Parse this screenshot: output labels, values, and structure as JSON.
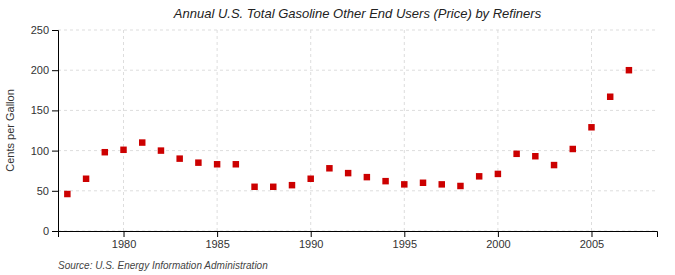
{
  "chart_data": {
    "type": "scatter",
    "title": "Annual U.S. Total Gasoline Other End Users (Price) by Refiners",
    "ylabel": "Cents per Gallon",
    "annotations": [
      "Source: U.S. Energy Information Administration"
    ],
    "x": [
      1977,
      1978,
      1979,
      1980,
      1981,
      1982,
      1983,
      1984,
      1985,
      1986,
      1987,
      1988,
      1989,
      1990,
      1991,
      1992,
      1993,
      1994,
      1995,
      1996,
      1997,
      1998,
      1999,
      2000,
      2001,
      2002,
      2003,
      2004,
      2005,
      2006,
      2007
    ],
    "values": [
      46,
      65,
      98,
      101,
      110,
      100,
      90,
      85,
      83,
      83,
      55,
      55,
      57,
      65,
      78,
      72,
      67,
      62,
      58,
      60,
      58,
      56,
      68,
      71,
      96,
      93,
      82,
      102,
      129,
      167,
      200
    ],
    "color": "#cc0000",
    "marker": "square",
    "xlim": [
      1976.5,
      2008.5
    ],
    "ylim": [
      0,
      250
    ],
    "xticks": [
      1980,
      1985,
      1990,
      1995,
      2000,
      2005
    ],
    "yticks": [
      0,
      50,
      100,
      150,
      200,
      250
    ],
    "grid": true
  }
}
